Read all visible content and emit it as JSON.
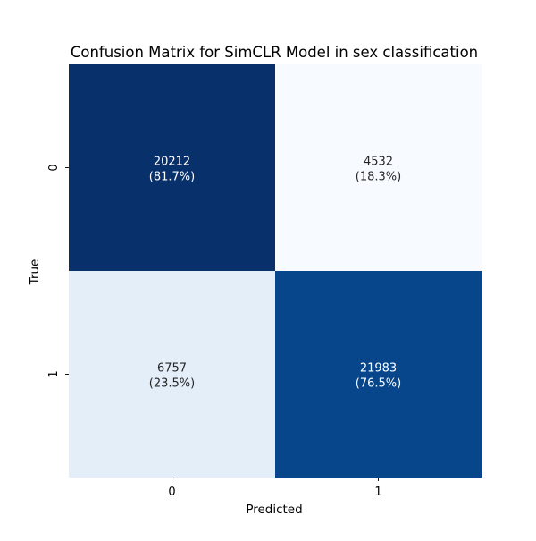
{
  "chart_data": {
    "type": "heatmap",
    "title": "Confusion Matrix for SimCLR Model in sex classification",
    "xlabel": "Predicted",
    "ylabel": "True",
    "x_categories": [
      "0",
      "1"
    ],
    "y_categories": [
      "0",
      "1"
    ],
    "cells": [
      {
        "row": 0,
        "col": 0,
        "count": "20212",
        "percent": "(81.7%)",
        "fill": "#08306b",
        "text_color": "#ffffff"
      },
      {
        "row": 0,
        "col": 1,
        "count": "4532",
        "percent": "(18.3%)",
        "fill": "#f7fbff",
        "text_color": "#262626"
      },
      {
        "row": 1,
        "col": 0,
        "count": "6757",
        "percent": "(23.5%)",
        "fill": "#e3eef9",
        "text_color": "#262626"
      },
      {
        "row": 1,
        "col": 1,
        "count": "21983",
        "percent": "(76.5%)",
        "fill": "#08468b",
        "text_color": "#ffffff"
      }
    ],
    "colormap": "Blues",
    "colorbar": false,
    "grid": false,
    "legend": "none"
  }
}
